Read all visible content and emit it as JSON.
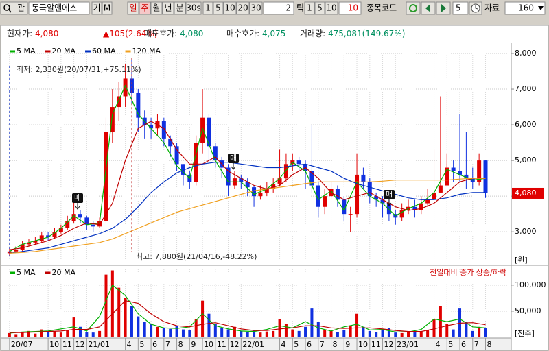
{
  "toolbar": {
    "search": "관",
    "stock_name": "동국알앤에스",
    "buttons": [
      "기",
      "M"
    ],
    "periods": [
      "일",
      "주",
      "월",
      "년",
      "분",
      "30s"
    ],
    "selected_period": "주",
    "minutes": [
      "1",
      "5",
      "10",
      "20",
      "30"
    ],
    "tick_value": "2",
    "tick_unit": "틱",
    "ticks": [
      "1",
      "5",
      "10"
    ],
    "tick_input": "10",
    "code_label": "종목코드",
    "step": "5",
    "data_label": "자료",
    "data_count": "160"
  },
  "info": [
    {
      "label": "현재가:",
      "value": "4,080",
      "color": "#e00000"
    },
    {
      "value": "▲105(2.64%)",
      "color": "#e00000"
    },
    {
      "label": "매도호가:",
      "value": "4,080",
      "color": "#009060"
    },
    {
      "label": "매수호가:",
      "value": "4,075",
      "color": "#009060"
    },
    {
      "label": "거래량:",
      "value": "475,081(149.67%)",
      "color": "#009060"
    }
  ],
  "chart_data": [
    {
      "type": "candlestick",
      "x": [
        0,
        0.5,
        1,
        1.5,
        2,
        2.5,
        3,
        3.5,
        4,
        4.5,
        5,
        5.5,
        6,
        6.5,
        7,
        7.5,
        8,
        8.5,
        9,
        9.5,
        10,
        10.5,
        11,
        11.5,
        12,
        12.5,
        13,
        13.5,
        14,
        14.5,
        15,
        15.5,
        16,
        16.5,
        17,
        17.5,
        18,
        18.5,
        19,
        19.5,
        20,
        20.5,
        21,
        21.5,
        22,
        22.5,
        23,
        23.5,
        24,
        24.5,
        25,
        25.5,
        26,
        26.5,
        27,
        27.5,
        28,
        28.5,
        29,
        29.5,
        30,
        30.5,
        31,
        31.5,
        32,
        32.5,
        33,
        33.5,
        34,
        34.5,
        35,
        35.5,
        36,
        36.5,
        37
      ],
      "open": [
        2400,
        2450,
        2500,
        2650,
        2700,
        2750,
        2900,
        2850,
        3000,
        3100,
        3300,
        3500,
        3400,
        3200,
        3150,
        3300,
        5800,
        6500,
        6800,
        7300,
        6900,
        6200,
        6000,
        5900,
        6100,
        5600,
        5400,
        4900,
        4600,
        4400,
        5500,
        6200,
        5400,
        5000,
        4800,
        4300,
        4500,
        4400,
        4250,
        4000,
        4100,
        4200,
        4350,
        4500,
        4900,
        5000,
        4900,
        4700,
        4300,
        3700,
        4000,
        4200,
        3900,
        3500,
        3500,
        4600,
        4400,
        4000,
        3900,
        3800,
        3500,
        3400,
        3600,
        3700,
        3600,
        3800,
        3900,
        4100,
        4300,
        4800,
        4700,
        4600,
        4500,
        4400,
        5000
      ],
      "high": [
        2550,
        2600,
        2750,
        2800,
        2850,
        3000,
        3000,
        3100,
        3200,
        3450,
        3900,
        3600,
        3450,
        3300,
        3400,
        6200,
        7000,
        7200,
        7700,
        7880,
        7000,
        6400,
        6200,
        6300,
        6200,
        5700,
        5500,
        4900,
        4700,
        5700,
        7000,
        6300,
        5500,
        5100,
        4900,
        4700,
        4600,
        4500,
        4300,
        4300,
        4400,
        4500,
        5300,
        5200,
        5200,
        5100,
        5000,
        6000,
        4400,
        4200,
        4400,
        4300,
        4000,
        3700,
        5200,
        4800,
        4500,
        4100,
        4000,
        3900,
        3600,
        3800,
        3900,
        3900,
        4000,
        4200,
        5300,
        6800,
        5200,
        5000,
        6300,
        5800,
        4800,
        5200,
        5000
      ],
      "low": [
        2330,
        2400,
        2450,
        2600,
        2650,
        2700,
        2750,
        2800,
        2950,
        3050,
        3250,
        3250,
        3050,
        3000,
        3100,
        3250,
        5500,
        6100,
        6500,
        6600,
        5800,
        5600,
        5600,
        5700,
        5400,
        5100,
        4700,
        4300,
        4200,
        4300,
        5200,
        5000,
        4800,
        4500,
        4000,
        4200,
        4200,
        4000,
        3700,
        3900,
        4000,
        4100,
        4300,
        4400,
        4700,
        4700,
        4200,
        4100,
        3400,
        3500,
        3900,
        3700,
        3300,
        3000,
        3400,
        4200,
        3800,
        3700,
        3400,
        3300,
        3200,
        3300,
        3500,
        3400,
        3500,
        3700,
        3800,
        4100,
        4300,
        4400,
        4400,
        4200,
        4200,
        4300,
        3950
      ],
      "close": [
        2450,
        2500,
        2650,
        2700,
        2750,
        2900,
        2850,
        3000,
        3100,
        3300,
        3500,
        3400,
        3200,
        3150,
        3300,
        5800,
        6500,
        6800,
        7300,
        6900,
        6200,
        6000,
        5900,
        6100,
        5600,
        5400,
        4900,
        4600,
        4400,
        5500,
        6200,
        5400,
        5000,
        4800,
        4300,
        4500,
        4400,
        4250,
        4000,
        4100,
        4200,
        4350,
        4500,
        4900,
        5000,
        4900,
        4700,
        4300,
        3700,
        4000,
        4200,
        3900,
        3500,
        3500,
        4600,
        4400,
        4000,
        3900,
        3800,
        3500,
        3400,
        3600,
        3700,
        3600,
        3800,
        3900,
        4100,
        4300,
        4800,
        4700,
        4600,
        4500,
        4400,
        5000,
        4080
      ],
      "up_color": "#e00000",
      "down_color": "#1030e0",
      "series": [
        {
          "name": "5 MA",
          "color": "#00b000",
          "x": [
            0,
            1,
            2,
            3,
            4,
            5,
            6,
            7,
            8,
            9,
            10,
            11,
            12,
            13,
            14,
            15,
            16,
            17,
            18,
            19,
            20,
            21,
            22,
            23,
            24,
            25,
            26,
            27,
            28,
            29,
            30,
            31,
            32,
            33,
            34,
            35,
            36,
            37
          ],
          "values": [
            2450,
            2650,
            2750,
            2850,
            3100,
            3450,
            3200,
            3250,
            6300,
            7100,
            6300,
            5900,
            5500,
            4850,
            4500,
            5900,
            5000,
            4400,
            4400,
            4050,
            4200,
            4500,
            4950,
            4700,
            3900,
            4150,
            3600,
            4400,
            4000,
            3800,
            3450,
            3650,
            3800,
            4100,
            4750,
            4600,
            4450,
            4500
          ]
        },
        {
          "name": "20 MA",
          "color": "#c00000",
          "x": [
            0,
            1,
            2,
            3,
            4,
            5,
            6,
            7,
            8,
            9,
            10,
            11,
            12,
            13,
            14,
            15,
            16,
            17,
            18,
            19,
            20,
            21,
            22,
            23,
            24,
            25,
            26,
            27,
            28,
            29,
            30,
            31,
            32,
            33,
            34,
            35,
            36,
            37
          ],
          "values": [
            2500,
            2550,
            2650,
            2750,
            2900,
            3100,
            3250,
            3200,
            3800,
            5000,
            5900,
            6100,
            5900,
            5300,
            4900,
            4900,
            5100,
            4700,
            4500,
            4300,
            4200,
            4300,
            4600,
            4800,
            4500,
            4100,
            3900,
            4000,
            4100,
            3900,
            3700,
            3600,
            3650,
            3800,
            4100,
            4400,
            4500,
            4500
          ]
        },
        {
          "name": "60 MA",
          "color": "#0030c0",
          "x": [
            0,
            1,
            2,
            3,
            4,
            5,
            6,
            7,
            8,
            9,
            10,
            11,
            12,
            13,
            14,
            15,
            16,
            17,
            18,
            19,
            20,
            21,
            22,
            23,
            24,
            25,
            26,
            27,
            28,
            29,
            30,
            31,
            32,
            33,
            34,
            35,
            36,
            37
          ],
          "values": [
            2400,
            2450,
            2500,
            2550,
            2650,
            2750,
            2850,
            2950,
            3100,
            3350,
            3700,
            4100,
            4400,
            4650,
            4800,
            4900,
            4950,
            4950,
            4900,
            4850,
            4800,
            4800,
            4850,
            4900,
            4800,
            4700,
            4500,
            4350,
            4250,
            4150,
            4050,
            3950,
            3900,
            3900,
            3950,
            4050,
            4100,
            4100
          ]
        },
        {
          "name": "120 MA",
          "color": "#f0a020",
          "x": [
            0,
            1,
            2,
            3,
            4,
            5,
            6,
            7,
            8,
            9,
            10,
            11,
            12,
            13,
            14,
            15,
            16,
            17,
            18,
            19,
            20,
            21,
            22,
            23,
            24,
            25,
            26,
            27,
            28,
            29,
            30,
            31,
            32,
            33,
            34,
            35,
            36,
            37
          ],
          "values": [
            2400,
            2420,
            2450,
            2500,
            2550,
            2600,
            2650,
            2700,
            2800,
            2950,
            3100,
            3250,
            3400,
            3550,
            3650,
            3750,
            3850,
            3950,
            4050,
            4150,
            4200,
            4250,
            4300,
            4350,
            4400,
            4400,
            4400,
            4400,
            4400,
            4420,
            4450,
            4450,
            4450,
            4450,
            4450,
            4480,
            4500,
            4500
          ]
        }
      ],
      "xlim": [
        -0.1,
        39
      ],
      "ylim": [
        2100,
        8250
      ],
      "yticks": [
        {
          "value": 3000,
          "label": "3,000"
        },
        {
          "value": 4000,
          "label": "4,000"
        },
        {
          "value": 5000,
          "label": "5,000"
        },
        {
          "value": 6000,
          "label": "6,000"
        },
        {
          "value": 7000,
          "label": "7,000"
        },
        {
          "value": 8000,
          "label": "8,000"
        }
      ],
      "y_unit": "[원]",
      "grid": true,
      "annotations": [
        "최저: 2,330원(20/07/31,+75.11%)",
        "최고: 7,880원(21/04/16,-48.22%)"
      ],
      "signals": [
        "매",
        "매",
        "매"
      ],
      "last_label": "4,080"
    },
    {
      "type": "bar",
      "values": [
        8000,
        6000,
        9000,
        12000,
        7000,
        15000,
        10000,
        12000,
        9000,
        14000,
        38000,
        20000,
        10000,
        9000,
        12000,
        120000,
        128000,
        95000,
        75000,
        60000,
        40000,
        30000,
        25000,
        20000,
        18000,
        16000,
        22000,
        15000,
        14000,
        35000,
        70000,
        45000,
        25000,
        18000,
        15000,
        20000,
        12000,
        10000,
        14000,
        9000,
        11000,
        12000,
        35000,
        25000,
        15000,
        12000,
        20000,
        55000,
        30000,
        15000,
        12000,
        10000,
        14000,
        22000,
        45000,
        20000,
        12000,
        10000,
        15000,
        18000,
        9000,
        8000,
        10000,
        12000,
        10000,
        14000,
        35000,
        60000,
        25000,
        15000,
        55000,
        30000,
        12000,
        20000,
        18000
      ],
      "series": [
        {
          "name": "5 MA",
          "color": "#00b000",
          "x": [
            0,
            1,
            2,
            3,
            4,
            5,
            6,
            7,
            8,
            9,
            10,
            11,
            12,
            13,
            14,
            15,
            16,
            17,
            18,
            19,
            20,
            21,
            22,
            23,
            24,
            25,
            26,
            27,
            28,
            29,
            30,
            31,
            32,
            33,
            34,
            35,
            36,
            37
          ],
          "values": [
            8000,
            10000,
            11000,
            12000,
            16000,
            20000,
            12000,
            40000,
            100000,
            80000,
            45000,
            25000,
            18000,
            17000,
            20000,
            45000,
            22000,
            16000,
            12000,
            11000,
            15000,
            22000,
            18000,
            30000,
            18000,
            12000,
            20000,
            25000,
            14000,
            15000,
            10000,
            10000,
            15000,
            35000,
            30000,
            35000,
            20000,
            18000
          ]
        },
        {
          "name": "20 MA",
          "color": "#c00000",
          "x": [
            0,
            1,
            2,
            3,
            4,
            5,
            6,
            7,
            8,
            9,
            10,
            11,
            12,
            13,
            14,
            15,
            16,
            17,
            18,
            19,
            20,
            21,
            22,
            23,
            24,
            25,
            26,
            27,
            28,
            29,
            30,
            31,
            32,
            33,
            34,
            35,
            36,
            37
          ],
          "values": [
            9000,
            9000,
            10000,
            11000,
            12000,
            15000,
            15000,
            20000,
            45000,
            70000,
            65000,
            45000,
            30000,
            22000,
            20000,
            25000,
            28000,
            22000,
            16000,
            13000,
            13000,
            16000,
            18000,
            22000,
            22000,
            18000,
            17000,
            18000,
            18000,
            16000,
            13000,
            11000,
            11000,
            16000,
            22000,
            27000,
            28000,
            24000
          ]
        }
      ],
      "note": "전일대비 증가 상승/하락",
      "xlim": [
        -0.1,
        39
      ],
      "ylim": [
        0,
        130000
      ],
      "yticks": [
        {
          "value": 50000,
          "label": "50,000"
        },
        {
          "value": 100000,
          "label": "100,000"
        }
      ],
      "y_unit": "[천주]",
      "xticks": [
        {
          "value": 0,
          "label": "20/07"
        },
        {
          "value": 3,
          "label": "10"
        },
        {
          "value": 4,
          "label": "11"
        },
        {
          "value": 5,
          "label": "12"
        },
        {
          "value": 6,
          "label": "21/01"
        },
        {
          "value": 9,
          "label": "4"
        },
        {
          "value": 10,
          "label": "5"
        },
        {
          "value": 11,
          "label": "6"
        },
        {
          "value": 12,
          "label": "7"
        },
        {
          "value": 13,
          "label": "8"
        },
        {
          "value": 14,
          "label": "9"
        },
        {
          "value": 15,
          "label": "10"
        },
        {
          "value": 16,
          "label": "11"
        },
        {
          "value": 17,
          "label": "12"
        },
        {
          "value": 18,
          "label": "22/01"
        },
        {
          "value": 21,
          "label": "4"
        },
        {
          "value": 22,
          "label": "5"
        },
        {
          "value": 23,
          "label": "6"
        },
        {
          "value": 24,
          "label": "7"
        },
        {
          "value": 25,
          "label": "8"
        },
        {
          "value": 26,
          "label": "9"
        },
        {
          "value": 27,
          "label": "10"
        },
        {
          "value": 28,
          "label": "11"
        },
        {
          "value": 29,
          "label": "12"
        },
        {
          "value": 30,
          "label": "23/01"
        },
        {
          "value": 33,
          "label": "4"
        },
        {
          "value": 34,
          "label": "5"
        },
        {
          "value": 35,
          "label": "6"
        },
        {
          "value": 36,
          "label": "7"
        },
        {
          "value": 37,
          "label": "8"
        }
      ]
    }
  ]
}
